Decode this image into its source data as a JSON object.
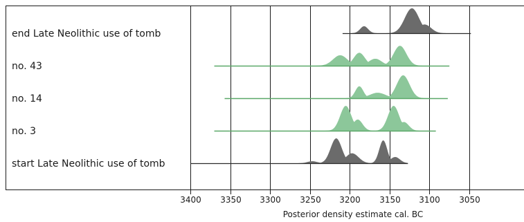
{
  "chart_data": {
    "type": "area",
    "title": "",
    "xlabel": "Posterior density estimate cal. BC",
    "ylabel": "",
    "xlim": [
      3400,
      3050
    ],
    "x_reversed": true,
    "x_ticks": [
      3400,
      3350,
      3300,
      3250,
      3200,
      3150,
      3100,
      3050
    ],
    "tick_labels": [
      "3400",
      "3350",
      "3300",
      "3250",
      "3200",
      "3150",
      "3100",
      "3050"
    ],
    "grid": "vertical",
    "colors": {
      "modelled": "#8cc79a",
      "modelled_line": "#5aa868",
      "boundary": "#6b6b6b",
      "boundary_line": "#2b2b2b",
      "grid": "#1a1a1a"
    },
    "series": [
      {
        "name": "end Late Neolithic use of tomb",
        "kind": "boundary",
        "range": [
          3209,
          3048
        ],
        "peaks": [
          {
            "center": 3182,
            "width": 5,
            "height": 0.28
          },
          {
            "center": 3122,
            "width": 9,
            "height": 1.0
          },
          {
            "center": 3106,
            "width": 8,
            "height": 0.35
          }
        ]
      },
      {
        "name": "no. 43",
        "kind": "modelled",
        "range": [
          3370,
          3075
        ],
        "peaks": [
          {
            "center": 3212,
            "width": 9,
            "height": 0.42
          },
          {
            "center": 3188,
            "width": 7,
            "height": 0.52
          },
          {
            "center": 3168,
            "width": 8,
            "height": 0.28
          },
          {
            "center": 3137,
            "width": 8,
            "height": 0.8
          }
        ]
      },
      {
        "name": "no. 14",
        "kind": "modelled",
        "range": [
          3357,
          3077
        ],
        "peaks": [
          {
            "center": 3188,
            "width": 5,
            "height": 0.48
          },
          {
            "center": 3165,
            "width": 10,
            "height": 0.22
          },
          {
            "center": 3133,
            "width": 8,
            "height": 0.92
          }
        ]
      },
      {
        "name": "no. 3",
        "kind": "modelled",
        "range": [
          3370,
          3092
        ],
        "peaks": [
          {
            "center": 3205,
            "width": 7,
            "height": 1.0
          },
          {
            "center": 3190,
            "width": 6,
            "height": 0.45
          },
          {
            "center": 3145,
            "width": 7,
            "height": 1.0
          },
          {
            "center": 3132,
            "width": 6,
            "height": 0.35
          }
        ]
      },
      {
        "name": "start Late Neolithic use of tomb",
        "kind": "boundary",
        "range": [
          3400,
          3127
        ],
        "peaks": [
          {
            "center": 3247,
            "width": 6,
            "height": 0.08
          },
          {
            "center": 3217,
            "width": 7,
            "height": 1.0
          },
          {
            "center": 3197,
            "width": 8,
            "height": 0.4
          },
          {
            "center": 3158,
            "width": 5,
            "height": 0.92
          },
          {
            "center": 3143,
            "width": 6,
            "height": 0.25
          }
        ]
      }
    ]
  }
}
